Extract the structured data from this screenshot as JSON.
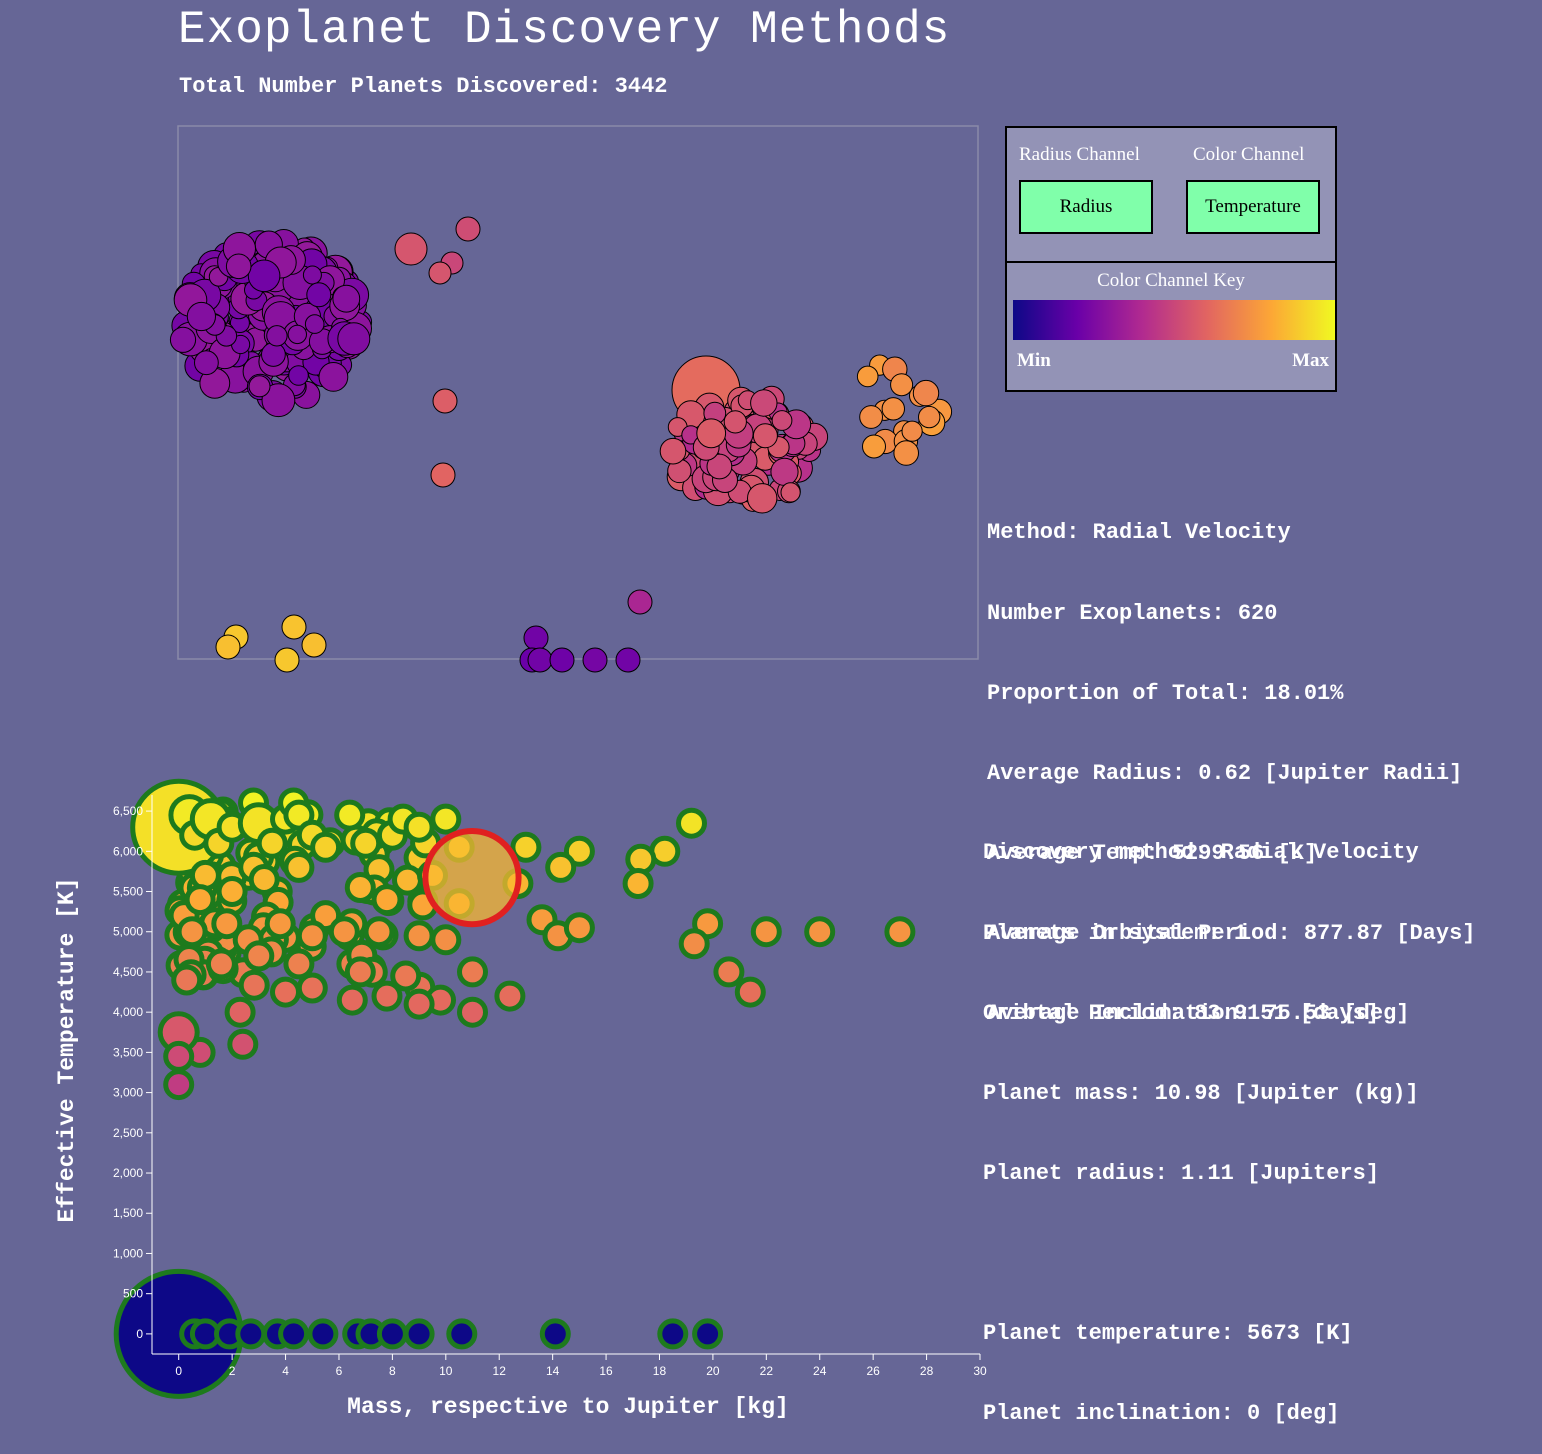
{
  "header": {
    "title": "Exoplanet Discovery Methods",
    "subtitle": "Total Number Planets Discovered: 3442"
  },
  "controls": {
    "radius_channel_label": "Radius Channel",
    "color_channel_label": "Color Channel",
    "radius_button": "Radius",
    "color_button": "Temperature",
    "key_title": "Color Channel Key",
    "min_label": "Min",
    "max_label": "Max"
  },
  "colors": {
    "background": "#666696",
    "button": "#80ffaa",
    "panel": "#9393b6",
    "selected_outline": "#e02020",
    "scatter_outline": "#1d7a1d",
    "gradient": [
      "#0d0887",
      "#6a00a8",
      "#b12a90",
      "#e16462",
      "#fca636",
      "#f0f921"
    ]
  },
  "method_info": {
    "line1": "Method: Radial Velocity",
    "line2": "Number Exoplanets: 620",
    "line3": "Proportion of Total: 18.01%",
    "line4": "Average Radius: 0.62 [Jupiter Radii]",
    "line5": "Average Temp: 5299.56 [K]",
    "line6": "Average Orbital Period: 877.87 [Days]",
    "line7": "Average Inclination: 75.53 [deg]"
  },
  "planet_info": {
    "line1": "Discovery method: Radial Velocity",
    "line2": "Planets in system: 1",
    "line3": "Oribtal Period: 83.9151 [days]",
    "line4": "Planet mass: 10.98 [Jupiter (kg)]",
    "line5": "Planet radius: 1.11 [Jupiters]",
    "line6": "Planet temperature: 5673 [K]",
    "line7": "Planet inclination: 0 [deg]"
  },
  "chart_data": {
    "type": "scatter",
    "xlabel": "Mass, respective to Jupiter [kg]",
    "ylabel": "Effective Temperature [K]",
    "xlim": [
      -1,
      30
    ],
    "ylim": [
      -250,
      6700
    ],
    "xticks": [
      "0",
      "2",
      "4",
      "6",
      "8",
      "10",
      "12",
      "14",
      "16",
      "18",
      "20",
      "22",
      "24",
      "26",
      "28",
      "30"
    ],
    "yticks": [
      "0",
      "500",
      "1,000",
      "1,500",
      "2,000",
      "2,500",
      "3,000",
      "3,500",
      "4,000",
      "4,500",
      "5,000",
      "5,500",
      "6,000",
      "6,500"
    ],
    "color_encodes": "temperature",
    "size_encodes": "radius",
    "selected": {
      "mass": 10.98,
      "temp": 5673,
      "radius": 1.11
    },
    "points": [
      {
        "m": 0.0,
        "t": 6300,
        "r": 1.1
      },
      {
        "m": 0.4,
        "t": 6450,
        "r": 0.6
      },
      {
        "m": 0.6,
        "t": 6200,
        "r": 0.5
      },
      {
        "m": 1.2,
        "t": 6400,
        "r": 0.6
      },
      {
        "m": 1.5,
        "t": 6100,
        "r": 0.5
      },
      {
        "m": 2.0,
        "t": 6300,
        "r": 0.5
      },
      {
        "m": 2.8,
        "t": 6600,
        "r": 0.5
      },
      {
        "m": 3.0,
        "t": 6350,
        "r": 0.6
      },
      {
        "m": 3.5,
        "t": 6100,
        "r": 0.5
      },
      {
        "m": 4.0,
        "t": 6400,
        "r": 0.5
      },
      {
        "m": 4.3,
        "t": 6600,
        "r": 0.5
      },
      {
        "m": 4.5,
        "t": 6450,
        "r": 0.5
      },
      {
        "m": 5.0,
        "t": 6200,
        "r": 0.5
      },
      {
        "m": 5.5,
        "t": 6050,
        "r": 0.5
      },
      {
        "m": 6.4,
        "t": 6450,
        "r": 0.5
      },
      {
        "m": 7.0,
        "t": 6100,
        "r": 0.5
      },
      {
        "m": 8.0,
        "t": 6200,
        "r": 0.5
      },
      {
        "m": 8.4,
        "t": 6400,
        "r": 0.5
      },
      {
        "m": 9.0,
        "t": 6300,
        "r": 0.5
      },
      {
        "m": 10.0,
        "t": 6400,
        "r": 0.5
      },
      {
        "m": 10.5,
        "t": 6050,
        "r": 0.5
      },
      {
        "m": 13.0,
        "t": 6050,
        "r": 0.5
      },
      {
        "m": 15.0,
        "t": 6000,
        "r": 0.5
      },
      {
        "m": 19.2,
        "t": 6350,
        "r": 0.5
      },
      {
        "m": 18.2,
        "t": 6000,
        "r": 0.5
      },
      {
        "m": 17.3,
        "t": 5900,
        "r": 0.5
      },
      {
        "m": 17.2,
        "t": 5600,
        "r": 0.5
      },
      {
        "m": 14.3,
        "t": 5800,
        "r": 0.5
      },
      {
        "m": 12.7,
        "t": 5600,
        "r": 0.5
      },
      {
        "m": 10.5,
        "t": 5350,
        "r": 0.5
      },
      {
        "m": 9.5,
        "t": 5700,
        "r": 0.5
      },
      {
        "m": 7.8,
        "t": 5400,
        "r": 0.5
      },
      {
        "m": 6.8,
        "t": 5550,
        "r": 0.5
      },
      {
        "m": 5.5,
        "t": 5200,
        "r": 0.5
      },
      {
        "m": 4.5,
        "t": 5800,
        "r": 0.5
      },
      {
        "m": 3.2,
        "t": 5650,
        "r": 0.5
      },
      {
        "m": 2.0,
        "t": 5500,
        "r": 0.5
      },
      {
        "m": 1.0,
        "t": 5700,
        "r": 0.5
      },
      {
        "m": 0.2,
        "t": 5200,
        "r": 0.5
      },
      {
        "m": 0.5,
        "t": 5000,
        "r": 0.5
      },
      {
        "m": 0.8,
        "t": 5400,
        "r": 0.5
      },
      {
        "m": 1.8,
        "t": 5100,
        "r": 0.5
      },
      {
        "m": 2.6,
        "t": 4900,
        "r": 0.5
      },
      {
        "m": 3.8,
        "t": 5100,
        "r": 0.5
      },
      {
        "m": 5.0,
        "t": 4950,
        "r": 0.5
      },
      {
        "m": 6.2,
        "t": 5000,
        "r": 0.5
      },
      {
        "m": 7.5,
        "t": 5000,
        "r": 0.5
      },
      {
        "m": 9.0,
        "t": 4950,
        "r": 0.5
      },
      {
        "m": 10.0,
        "t": 4900,
        "r": 0.5
      },
      {
        "m": 13.6,
        "t": 5150,
        "r": 0.5
      },
      {
        "m": 14.2,
        "t": 4950,
        "r": 0.5
      },
      {
        "m": 15.0,
        "t": 5050,
        "r": 0.5
      },
      {
        "m": 19.8,
        "t": 5100,
        "r": 0.5
      },
      {
        "m": 19.3,
        "t": 4850,
        "r": 0.5
      },
      {
        "m": 22.0,
        "t": 5000,
        "r": 0.5
      },
      {
        "m": 24.0,
        "t": 5000,
        "r": 0.5
      },
      {
        "m": 27.0,
        "t": 5000,
        "r": 0.5
      },
      {
        "m": 20.6,
        "t": 4500,
        "r": 0.5
      },
      {
        "m": 21.4,
        "t": 4250,
        "r": 0.5
      },
      {
        "m": 12.4,
        "t": 4200,
        "r": 0.5
      },
      {
        "m": 11.0,
        "t": 4500,
        "r": 0.5
      },
      {
        "m": 11.0,
        "t": 4000,
        "r": 0.5
      },
      {
        "m": 9.8,
        "t": 4150,
        "r": 0.5
      },
      {
        "m": 9.0,
        "t": 4100,
        "r": 0.5
      },
      {
        "m": 7.8,
        "t": 4200,
        "r": 0.5
      },
      {
        "m": 6.5,
        "t": 4150,
        "r": 0.5
      },
      {
        "m": 5.0,
        "t": 4300,
        "r": 0.5
      },
      {
        "m": 4.0,
        "t": 4250,
        "r": 0.5
      },
      {
        "m": 2.3,
        "t": 4000,
        "r": 0.5
      },
      {
        "m": 2.4,
        "t": 3600,
        "r": 0.5
      },
      {
        "m": 0.8,
        "t": 3500,
        "r": 0.5
      },
      {
        "m": 0.0,
        "t": 3750,
        "r": 0.6
      },
      {
        "m": 0.0,
        "t": 3450,
        "r": 0.5
      },
      {
        "m": 0.0,
        "t": 3100,
        "r": 0.5
      },
      {
        "m": 0.3,
        "t": 4400,
        "r": 0.5
      },
      {
        "m": 1.6,
        "t": 4600,
        "r": 0.5
      },
      {
        "m": 3.0,
        "t": 4700,
        "r": 0.5
      },
      {
        "m": 4.5,
        "t": 4600,
        "r": 0.5
      },
      {
        "m": 6.8,
        "t": 4500,
        "r": 0.5
      },
      {
        "m": 8.5,
        "t": 4450,
        "r": 0.5
      },
      {
        "m": 0.0,
        "t": 0,
        "r": 1.4
      },
      {
        "m": 0.6,
        "t": 0,
        "r": 0.5
      },
      {
        "m": 1.0,
        "t": 0,
        "r": 0.5
      },
      {
        "m": 1.9,
        "t": 0,
        "r": 0.5
      },
      {
        "m": 2.7,
        "t": 0,
        "r": 0.5
      },
      {
        "m": 3.7,
        "t": 0,
        "r": 0.5
      },
      {
        "m": 4.3,
        "t": 0,
        "r": 0.5
      },
      {
        "m": 5.4,
        "t": 0,
        "r": 0.5
      },
      {
        "m": 6.7,
        "t": 0,
        "r": 0.5
      },
      {
        "m": 7.2,
        "t": 0,
        "r": 0.5
      },
      {
        "m": 8.0,
        "t": 0,
        "r": 0.5
      },
      {
        "m": 9.0,
        "t": 0,
        "r": 0.5
      },
      {
        "m": 10.6,
        "t": 0,
        "r": 0.5
      },
      {
        "m": 14.1,
        "t": 0,
        "r": 0.5
      },
      {
        "m": 18.5,
        "t": 0,
        "r": 0.5
      },
      {
        "m": 19.8,
        "t": 0,
        "r": 0.5
      }
    ]
  }
}
